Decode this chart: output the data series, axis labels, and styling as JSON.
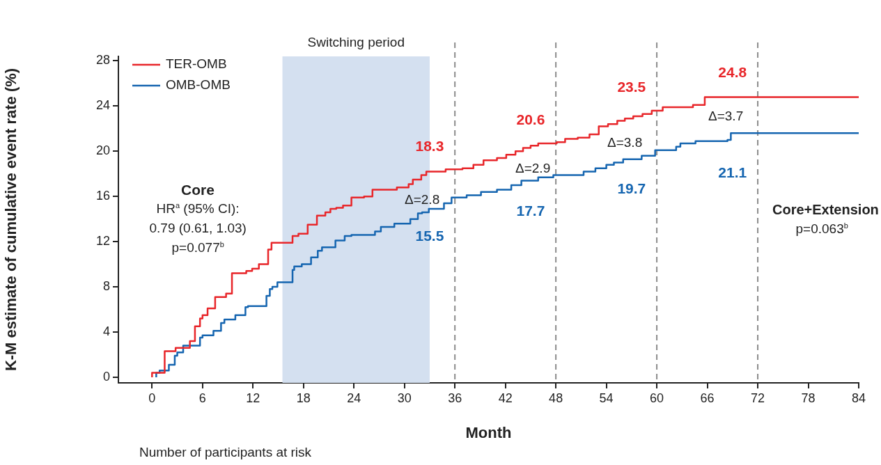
{
  "chart_data": {
    "type": "step",
    "xlabel": "Month",
    "ylabel": "K-M estimate of cumulative event rate (%)",
    "xlim": [
      -4,
      84
    ],
    "xticks": [
      0,
      6,
      12,
      18,
      24,
      30,
      36,
      42,
      48,
      54,
      60,
      66,
      72,
      78,
      84
    ],
    "ylim": [
      -0.5,
      28.4
    ],
    "yticks": [
      0,
      4,
      8,
      12,
      16,
      20,
      24,
      28
    ],
    "grid": false,
    "legend": "top left",
    "marker": "none",
    "line_style": "solid",
    "series": [
      {
        "name": "TER-OMB",
        "color": "#e8262a",
        "x": [
          0,
          1.5,
          2.8,
          4.5,
          5.1,
          5.7,
          6.0,
          6.6,
          7.5,
          8.8,
          9.5,
          11.2,
          11.9,
          12.7,
          13.8,
          14.2,
          16.7,
          17.4,
          18.5,
          19.6,
          20.6,
          21.2,
          21.9,
          22.7,
          23.7,
          25.2,
          26.2,
          29.1,
          30.5,
          31.0,
          32.0,
          32.6,
          34.9,
          36.9,
          38.2,
          39.4,
          41.0,
          42.1,
          43.2,
          44.1,
          45.0,
          45.9,
          48.1,
          49.1,
          50.6,
          52.0,
          53.1,
          54.2,
          55.3,
          56.2,
          57.2,
          58.3,
          59.4,
          60.7,
          64.3,
          65.7,
          69.0,
          84
        ],
        "values": [
          0,
          0.4,
          2.3,
          2.6,
          3.2,
          4.5,
          5.2,
          5.5,
          6.1,
          7.1,
          7.4,
          9.2,
          9.4,
          9.6,
          10.0,
          11.3,
          11.9,
          12.5,
          12.7,
          13.5,
          14.3,
          14.6,
          14.9,
          15.0,
          15.2,
          15.9,
          16.0,
          16.6,
          16.8,
          17.1,
          17.5,
          17.9,
          18.2,
          18.4,
          18.5,
          18.8,
          19.2,
          19.4,
          19.7,
          20.0,
          20.3,
          20.5,
          20.7,
          20.8,
          21.1,
          21.2,
          21.5,
          22.2,
          22.4,
          22.7,
          22.9,
          23.1,
          23.3,
          23.6,
          23.9,
          24.1,
          24.8,
          24.8
        ]
      },
      {
        "name": "OMB-OMB",
        "color": "#1565b0",
        "x": [
          0.5,
          0.9,
          2.0,
          2.7,
          3.0,
          3.7,
          5.7,
          6.0,
          7.3,
          8.2,
          8.6,
          9.9,
          11.1,
          11.4,
          13.6,
          14.0,
          14.3,
          14.9,
          16.7,
          16.9,
          17.8,
          18.9,
          19.7,
          20.2,
          21.8,
          22.9,
          23.7,
          26.5,
          27.2,
          28.8,
          30.7,
          31.6,
          32.1,
          32.9,
          34.7,
          35.6,
          37.4,
          39.1,
          41.0,
          42.7,
          43.9,
          45.9,
          47.7,
          51.3,
          52.7,
          54.0,
          54.9,
          56.0,
          58.2,
          59.8,
          62.3,
          62.8,
          64.6,
          68.4,
          68.8,
          73.8,
          84
        ],
        "values": [
          0,
          0.4,
          0.6,
          1.1,
          1.9,
          2.2,
          2.8,
          3.5,
          3.7,
          4.1,
          4.8,
          5.1,
          5.5,
          6.2,
          6.3,
          7.2,
          7.8,
          8.0,
          8.4,
          9.5,
          9.8,
          10.0,
          10.6,
          11.2,
          11.5,
          12.1,
          12.5,
          12.6,
          12.9,
          13.3,
          13.6,
          14.0,
          14.5,
          14.6,
          14.9,
          15.4,
          15.9,
          16.1,
          16.4,
          16.6,
          17.0,
          17.4,
          17.7,
          17.9,
          18.2,
          18.5,
          18.8,
          19.0,
          19.3,
          19.6,
          20.1,
          20.4,
          20.7,
          20.9,
          21.0,
          21.6,
          21.6
        ]
      }
    ],
    "bands": [
      {
        "axis": "x",
        "from": 15.5,
        "to": 33.0,
        "label": "Switching period",
        "color": "#d4e0f0"
      }
    ],
    "ref_lines": [
      {
        "axis": "x",
        "value": 36,
        "color": "#8c8c8c",
        "line_style": "dashed"
      },
      {
        "axis": "x",
        "value": 48,
        "color": "#8c8c8c",
        "line_style": "dashed"
      },
      {
        "axis": "x",
        "value": 60,
        "color": "#8c8c8c",
        "line_style": "dashed"
      },
      {
        "axis": "x",
        "value": 72,
        "color": "#8c8c8c",
        "line_style": "dashed"
      }
    ],
    "annotations": [
      {
        "text": "18.3",
        "x": 36,
        "y": 18.3
      },
      {
        "text": "15.5",
        "x": 36,
        "y": 15.5
      },
      {
        "text": "20.6",
        "x": 48,
        "y": 20.6
      },
      {
        "text": "17.7",
        "x": 48,
        "y": 17.7
      },
      {
        "text": "23.5",
        "x": 60,
        "y": 23.5
      },
      {
        "text": "19.7",
        "x": 60,
        "y": 19.7
      },
      {
        "text": "24.8",
        "x": 72,
        "y": 24.8
      },
      {
        "text": "21.1",
        "x": 72,
        "y": 21.1
      },
      "Δ=2.8",
      "Δ=2.9",
      "Δ=3.8",
      "Δ=3.7",
      "Core",
      "HR$^{a}$ (95% CI):",
      "0.79 (0.61, 1.03)",
      "p=0.077$^{b}$",
      "Core+Extension",
      "p=0.063$^{b}$",
      "Number of participants at risk"
    ]
  }
}
